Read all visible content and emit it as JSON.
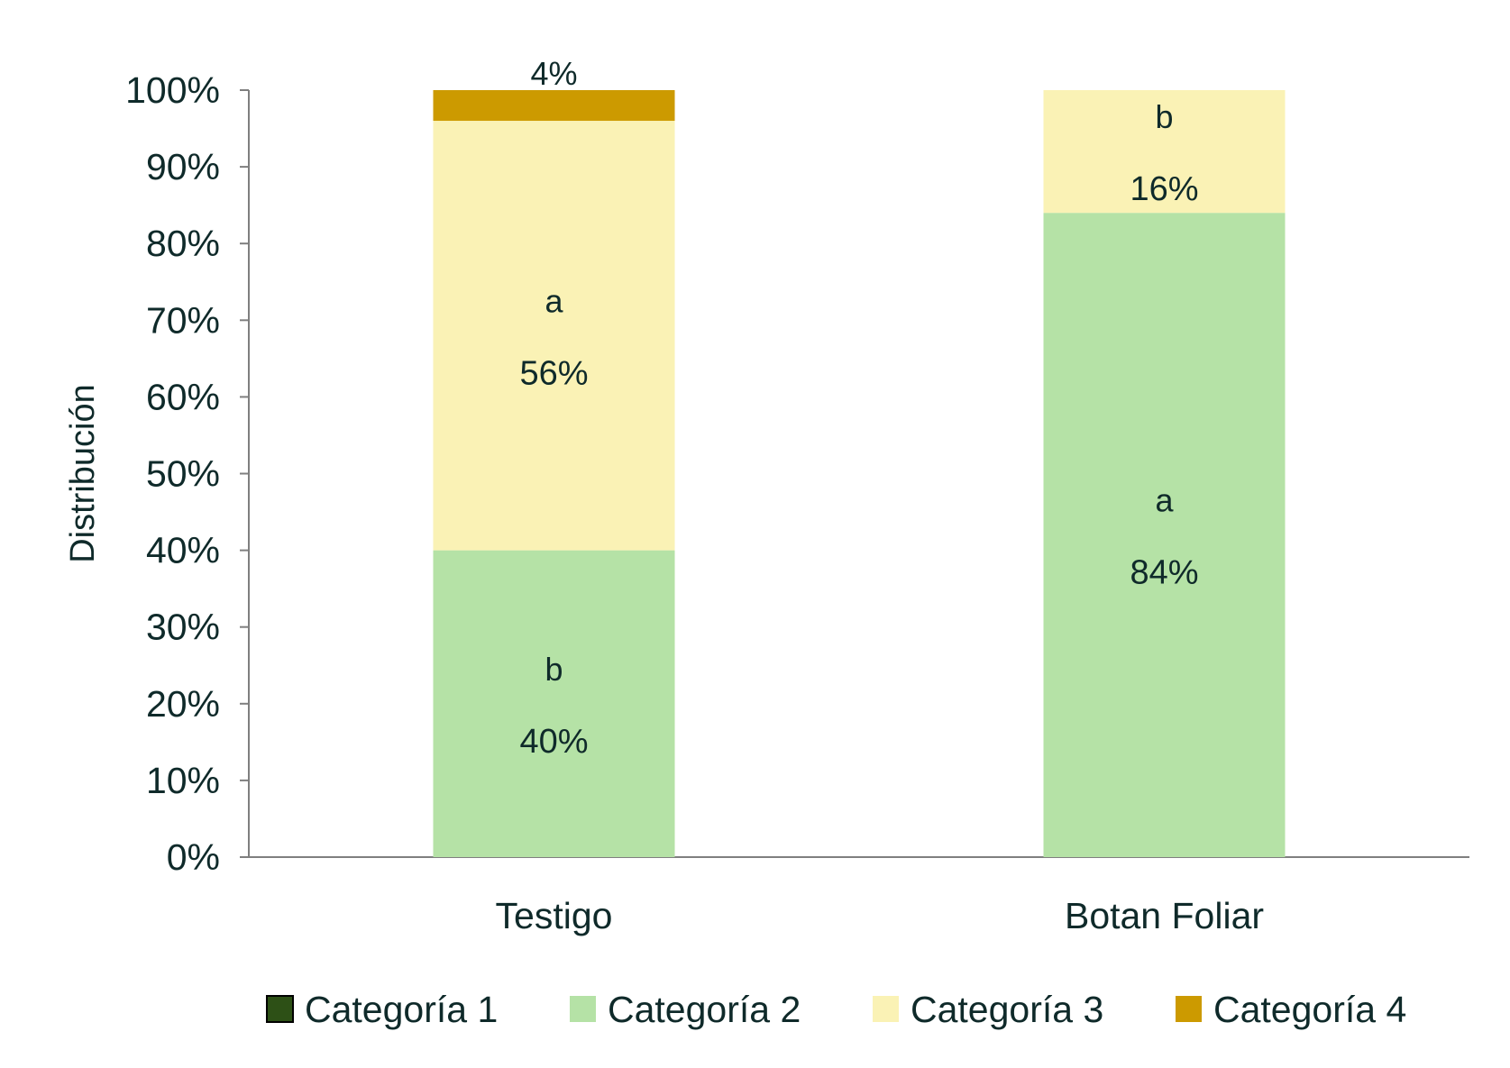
{
  "chart_data": {
    "type": "bar",
    "stacked": true,
    "ylabel": "Distribución",
    "xlabel": "",
    "ylim": [
      0,
      100
    ],
    "y_ticks": [
      "0%",
      "10%",
      "20%",
      "30%",
      "40%",
      "50%",
      "60%",
      "70%",
      "80%",
      "90%",
      "100%"
    ],
    "grid": false,
    "legend_position": "bottom",
    "categories": [
      "Testigo",
      "Botan Foliar"
    ],
    "series": [
      {
        "name": "Categoría 1",
        "color": "#2d5016",
        "values": [
          0,
          0
        ],
        "value_labels": [
          "",
          ""
        ],
        "letters": [
          "",
          ""
        ]
      },
      {
        "name": "Categoría 2",
        "color": "#b5e2a6",
        "values": [
          40,
          84
        ],
        "value_labels": [
          "40%",
          "84%"
        ],
        "letters": [
          "b",
          "a"
        ]
      },
      {
        "name": "Categoría 3",
        "color": "#faf2b5",
        "values": [
          56,
          16
        ],
        "value_labels": [
          "56%",
          "16%"
        ],
        "letters": [
          "a",
          "b"
        ]
      },
      {
        "name": "Categoría 4",
        "color": "#cc9a00",
        "values": [
          4,
          0
        ],
        "value_labels": [
          "4%",
          ""
        ],
        "letters": [
          "",
          ""
        ]
      }
    ]
  }
}
